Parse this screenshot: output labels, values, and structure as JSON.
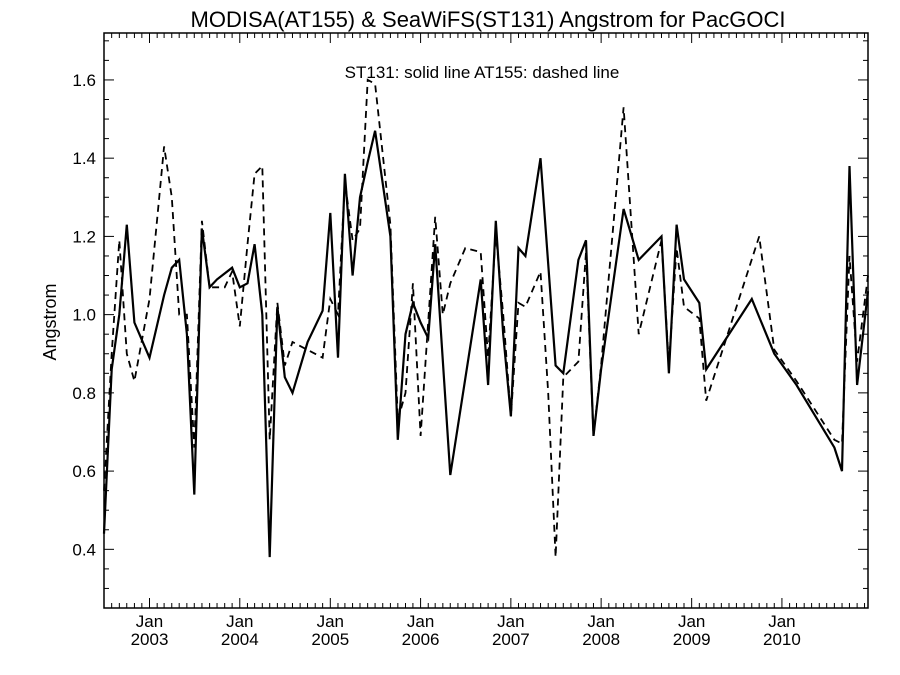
{
  "chart_data": {
    "type": "line",
    "title": "MODISA(AT155) & SeaWiFS(ST131)  Angstrom for PacGOCI",
    "annotation": "ST131: solid line   AT155: dashed line",
    "ylabel": "Angstrom",
    "xlabel": "",
    "xlim": [
      "2002-07-01",
      "2010-12-15"
    ],
    "ylim": [
      0.25,
      1.72
    ],
    "yticks": [
      0.4,
      0.6,
      0.8,
      1.0,
      1.2,
      1.4,
      1.6
    ],
    "ytick_labels": [
      "0.4",
      "0.6",
      "0.8",
      "1.0",
      "1.2",
      "1.4",
      "1.6"
    ],
    "xticks": [
      {
        "date": "2003-01-01",
        "month": "Jan",
        "year": "2003"
      },
      {
        "date": "2004-01-01",
        "month": "Jan",
        "year": "2004"
      },
      {
        "date": "2005-01-01",
        "month": "Jan",
        "year": "2005"
      },
      {
        "date": "2006-01-01",
        "month": "Jan",
        "year": "2006"
      },
      {
        "date": "2007-01-01",
        "month": "Jan",
        "year": "2007"
      },
      {
        "date": "2008-01-01",
        "month": "Jan",
        "year": "2008"
      },
      {
        "date": "2009-01-01",
        "month": "Jan",
        "year": "2009"
      },
      {
        "date": "2010-01-01",
        "month": "Jan",
        "year": "2010"
      }
    ],
    "grid": false,
    "series": [
      {
        "name": "ST131",
        "style": "solid",
        "color": "#000000",
        "points": [
          [
            "2002-07-01",
            0.44
          ],
          [
            "2002-08-01",
            0.86
          ],
          [
            "2002-09-01",
            1.0
          ],
          [
            "2002-10-01",
            1.23
          ],
          [
            "2002-11-01",
            0.98
          ],
          [
            "2003-01-01",
            0.89
          ],
          [
            "2003-03-01",
            1.05
          ],
          [
            "2003-04-01",
            1.12
          ],
          [
            "2003-05-01",
            1.14
          ],
          [
            "2003-06-01",
            0.95
          ],
          [
            "2003-07-01",
            0.54
          ],
          [
            "2003-08-01",
            1.22
          ],
          [
            "2003-09-01",
            1.07
          ],
          [
            "2003-10-01",
            1.09
          ],
          [
            "2003-12-01",
            1.12
          ],
          [
            "2004-01-01",
            1.07
          ],
          [
            "2004-02-01",
            1.08
          ],
          [
            "2004-03-01",
            1.18
          ],
          [
            "2004-04-01",
            1.0
          ],
          [
            "2004-05-01",
            0.38
          ],
          [
            "2004-06-01",
            1.02
          ],
          [
            "2004-07-01",
            0.84
          ],
          [
            "2004-08-01",
            0.8
          ],
          [
            "2004-10-01",
            0.93
          ],
          [
            "2004-12-01",
            1.01
          ],
          [
            "2005-01-01",
            1.26
          ],
          [
            "2005-02-01",
            0.89
          ],
          [
            "2005-03-01",
            1.36
          ],
          [
            "2005-04-01",
            1.1
          ],
          [
            "2005-05-01",
            1.3
          ],
          [
            "2005-06-01",
            1.39
          ],
          [
            "2005-07-01",
            1.47
          ],
          [
            "2005-09-01",
            1.2
          ],
          [
            "2005-10-01",
            0.68
          ],
          [
            "2005-11-01",
            0.95
          ],
          [
            "2005-12-01",
            1.03
          ],
          [
            "2006-01-01",
            0.98
          ],
          [
            "2006-02-01",
            0.94
          ],
          [
            "2006-03-01",
            1.18
          ],
          [
            "2006-05-01",
            0.59
          ],
          [
            "2006-09-01",
            1.09
          ],
          [
            "2006-10-01",
            0.82
          ],
          [
            "2006-11-01",
            1.24
          ],
          [
            "2006-12-01",
            0.95
          ],
          [
            "2007-01-01",
            0.74
          ],
          [
            "2007-02-01",
            1.17
          ],
          [
            "2007-03-01",
            1.15
          ],
          [
            "2007-05-01",
            1.4
          ],
          [
            "2007-07-01",
            0.87
          ],
          [
            "2007-08-01",
            0.85
          ],
          [
            "2007-10-01",
            1.14
          ],
          [
            "2007-11-01",
            1.19
          ],
          [
            "2007-12-01",
            0.69
          ],
          [
            "2008-01-01",
            0.86
          ],
          [
            "2008-04-01",
            1.27
          ],
          [
            "2008-06-01",
            1.14
          ],
          [
            "2008-09-01",
            1.2
          ],
          [
            "2008-10-01",
            0.85
          ],
          [
            "2008-11-01",
            1.23
          ],
          [
            "2008-12-01",
            1.09
          ],
          [
            "2009-02-01",
            1.03
          ],
          [
            "2009-03-01",
            0.86
          ],
          [
            "2009-09-01",
            1.04
          ],
          [
            "2009-12-01",
            0.9
          ],
          [
            "2010-03-01",
            0.82
          ],
          [
            "2010-08-01",
            0.66
          ],
          [
            "2010-09-01",
            0.6
          ],
          [
            "2010-10-01",
            1.38
          ],
          [
            "2010-11-01",
            0.82
          ],
          [
            "2010-12-15",
            1.06
          ]
        ]
      },
      {
        "name": "AT155",
        "style": "dashed",
        "color": "#000000",
        "points": [
          [
            "2002-07-01",
            0.55
          ],
          [
            "2002-08-01",
            0.9
          ],
          [
            "2002-09-01",
            1.19
          ],
          [
            "2002-10-01",
            0.9
          ],
          [
            "2002-11-01",
            0.83
          ],
          [
            "2003-01-01",
            1.04
          ],
          [
            "2003-03-01",
            1.43
          ],
          [
            "2003-04-01",
            1.3
          ],
          [
            "2003-05-01",
            1.0
          ],
          [
            "2003-06-01",
            1.0
          ],
          [
            "2003-07-01",
            0.66
          ],
          [
            "2003-08-01",
            1.24
          ],
          [
            "2003-09-01",
            1.07
          ],
          [
            "2003-11-01",
            1.07
          ],
          [
            "2003-12-01",
            1.11
          ],
          [
            "2004-01-01",
            0.97
          ],
          [
            "2004-02-01",
            1.18
          ],
          [
            "2004-03-01",
            1.36
          ],
          [
            "2004-04-01",
            1.38
          ],
          [
            "2004-05-01",
            0.68
          ],
          [
            "2004-06-01",
            1.03
          ],
          [
            "2004-07-01",
            0.87
          ],
          [
            "2004-08-01",
            0.93
          ],
          [
            "2004-12-01",
            0.89
          ],
          [
            "2005-01-01",
            1.04
          ],
          [
            "2005-02-01",
            1.0
          ],
          [
            "2005-03-01",
            1.34
          ],
          [
            "2005-04-01",
            1.19
          ],
          [
            "2005-05-01",
            1.22
          ],
          [
            "2005-06-01",
            1.6
          ],
          [
            "2005-07-01",
            1.59
          ],
          [
            "2005-09-01",
            1.23
          ],
          [
            "2005-10-01",
            0.73
          ],
          [
            "2005-11-01",
            0.8
          ],
          [
            "2005-12-01",
            1.08
          ],
          [
            "2006-01-01",
            0.69
          ],
          [
            "2006-03-01",
            1.25
          ],
          [
            "2006-04-01",
            1.0
          ],
          [
            "2006-05-01",
            1.08
          ],
          [
            "2006-07-01",
            1.17
          ],
          [
            "2006-09-01",
            1.16
          ],
          [
            "2006-10-01",
            0.89
          ],
          [
            "2006-11-01",
            1.21
          ],
          [
            "2006-12-01",
            1.0
          ],
          [
            "2007-01-01",
            0.74
          ],
          [
            "2007-02-01",
            1.03
          ],
          [
            "2007-03-01",
            1.02
          ],
          [
            "2007-05-01",
            1.11
          ],
          [
            "2007-06-01",
            0.8
          ],
          [
            "2007-07-01",
            0.38
          ],
          [
            "2007-08-01",
            0.84
          ],
          [
            "2007-10-01",
            0.88
          ],
          [
            "2007-11-01",
            1.16
          ],
          [
            "2007-12-01",
            0.69
          ],
          [
            "2008-01-01",
            0.87
          ],
          [
            "2008-04-01",
            1.53
          ],
          [
            "2008-06-01",
            0.95
          ],
          [
            "2008-09-01",
            1.19
          ],
          [
            "2008-10-01",
            0.87
          ],
          [
            "2008-11-01",
            1.17
          ],
          [
            "2008-12-01",
            1.02
          ],
          [
            "2009-02-01",
            0.99
          ],
          [
            "2009-03-01",
            0.78
          ],
          [
            "2009-10-01",
            1.2
          ],
          [
            "2009-12-01",
            0.91
          ],
          [
            "2010-03-01",
            0.83
          ],
          [
            "2010-08-01",
            0.68
          ],
          [
            "2010-09-01",
            0.67
          ],
          [
            "2010-10-01",
            1.15
          ],
          [
            "2010-11-01",
            0.88
          ],
          [
            "2010-12-15",
            1.1
          ]
        ]
      }
    ]
  }
}
